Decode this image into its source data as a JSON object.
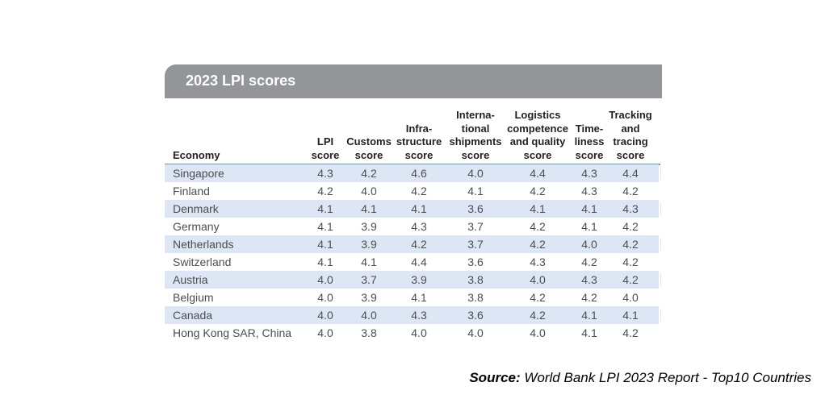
{
  "title": "2023 LPI scores",
  "columns": [
    "Economy",
    "LPI\nscore",
    "Customs\nscore",
    "Infra-\nstructure\nscore",
    "Interna-\ntional\nshipments\nscore",
    "Logistics\ncompetence\nand quality\nscore",
    "Time-\nliness\nscore",
    "Tracking\nand\ntracing\nscore"
  ],
  "rows": [
    [
      "Singapore",
      "4.3",
      "4.2",
      "4.6",
      "4.0",
      "4.4",
      "4.3",
      "4.4"
    ],
    [
      "Finland",
      "4.2",
      "4.0",
      "4.2",
      "4.1",
      "4.2",
      "4.3",
      "4.2"
    ],
    [
      "Denmark",
      "4.1",
      "4.1",
      "4.1",
      "3.6",
      "4.1",
      "4.1",
      "4.3"
    ],
    [
      "Germany",
      "4.1",
      "3.9",
      "4.3",
      "3.7",
      "4.2",
      "4.1",
      "4.2"
    ],
    [
      "Netherlands",
      "4.1",
      "3.9",
      "4.2",
      "3.7",
      "4.2",
      "4.0",
      "4.2"
    ],
    [
      "Switzerland",
      "4.1",
      "4.1",
      "4.4",
      "3.6",
      "4.3",
      "4.2",
      "4.2"
    ],
    [
      "Austria",
      "4.0",
      "3.7",
      "3.9",
      "3.8",
      "4.0",
      "4.3",
      "4.2"
    ],
    [
      "Belgium",
      "4.0",
      "3.9",
      "4.1",
      "3.8",
      "4.2",
      "4.2",
      "4.0"
    ],
    [
      "Canada",
      "4.0",
      "4.0",
      "4.3",
      "3.6",
      "4.2",
      "4.1",
      "4.1"
    ],
    [
      "Hong Kong SAR, China",
      "4.0",
      "3.8",
      "4.0",
      "4.0",
      "4.0",
      "4.1",
      "4.2"
    ]
  ],
  "source": {
    "label": "Source:",
    "text": " World Bank LPI 2023 Report - Top10 Countries"
  },
  "colors": {
    "title_bar": "#939598",
    "stripe": "#dce6f4",
    "header_rule": "#5b9bd5"
  }
}
